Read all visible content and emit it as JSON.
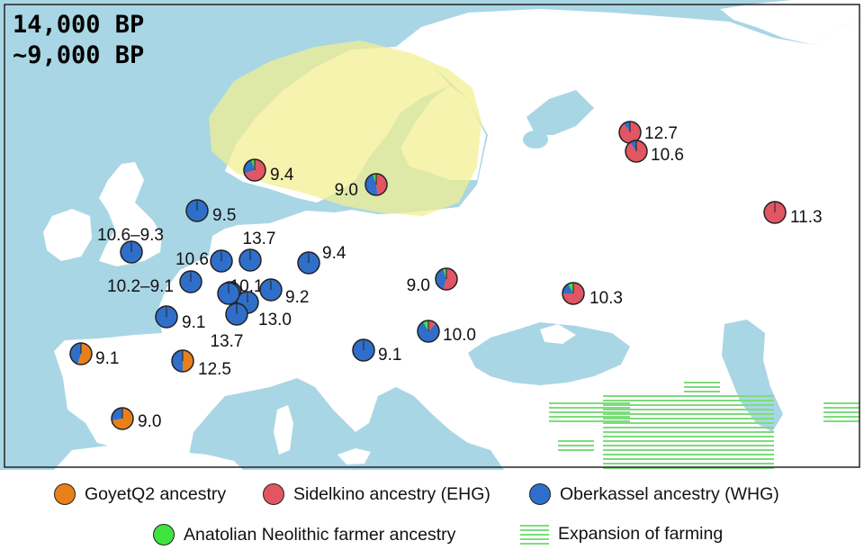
{
  "periods": [
    "14,000 BP",
    "~9,000 BP"
  ],
  "colors": {
    "sea": "#a9d6e5",
    "land": "#ffffff",
    "ice_zone": "#f3ef8f",
    "goyet": "#e8801a",
    "sidelkino": "#e25563",
    "oberkassel": "#2f6fc9",
    "anatolian": "#3fe33f",
    "farming": "#7ddc7d"
  },
  "legend": [
    {
      "key": "goyet",
      "label": "GoyetQ2 ancestry",
      "icon": "orange-circle-icon"
    },
    {
      "key": "sidelkino",
      "label": "Sidelkino ancestry (EHG)",
      "icon": "red-circle-icon"
    },
    {
      "key": "oberkassel",
      "label": "Oberkassel ancestry (WHG)",
      "icon": "blue-circle-icon"
    },
    {
      "key": "anatolian",
      "label": "Anatolian Neolithic farmer ancestry",
      "icon": "green-circle-icon"
    },
    {
      "key": "farming",
      "label": "Expansion of farming",
      "icon": "green-stripes-icon"
    }
  ],
  "samples": [
    {
      "label": "9.4",
      "shares": {
        "goyet": 0.0,
        "sidelkino": 0.7,
        "oberkassel": 0.25,
        "anatolian": 0.05
      }
    },
    {
      "label": "9.0",
      "shares": {
        "goyet": 0.0,
        "sidelkino": 0.48,
        "oberkassel": 0.47,
        "anatolian": 0.05
      }
    },
    {
      "label": "9.5",
      "shares": {
        "goyet": 0.0,
        "sidelkino": 0.01,
        "oberkassel": 0.99,
        "anatolian": 0.0
      }
    },
    {
      "label": "12.7",
      "shares": {
        "goyet": 0.0,
        "sidelkino": 0.9,
        "oberkassel": 0.1,
        "anatolian": 0.0
      }
    },
    {
      "label": "10.6",
      "shares": {
        "goyet": 0.0,
        "sidelkino": 0.9,
        "oberkassel": 0.1,
        "anatolian": 0.0
      }
    },
    {
      "label": "11.3",
      "shares": {
        "goyet": 0.0,
        "sidelkino": 0.99,
        "oberkassel": 0.01,
        "anatolian": 0.0
      }
    },
    {
      "label": "10.6–9.3",
      "shares": {
        "goyet": 0.0,
        "sidelkino": 0.01,
        "oberkassel": 0.99,
        "anatolian": 0.0
      }
    },
    {
      "label": "10.6",
      "shares": {
        "goyet": 0.0,
        "sidelkino": 0.01,
        "oberkassel": 0.99,
        "anatolian": 0.0
      }
    },
    {
      "label": "13.7",
      "shares": {
        "goyet": 0.0,
        "sidelkino": 0.01,
        "oberkassel": 0.99,
        "anatolian": 0.0
      }
    },
    {
      "label": "9.4",
      "shares": {
        "goyet": 0.0,
        "sidelkino": 0.01,
        "oberkassel": 0.99,
        "anatolian": 0.0
      }
    },
    {
      "label": "10.2–9.1",
      "shares": {
        "goyet": 0.0,
        "sidelkino": 0.01,
        "oberkassel": 0.99,
        "anatolian": 0.0
      }
    },
    {
      "label": "10.1",
      "shares": {
        "goyet": 0.0,
        "sidelkino": 0.01,
        "oberkassel": 0.99,
        "anatolian": 0.0
      }
    },
    {
      "label": "9.2",
      "shares": {
        "goyet": 0.0,
        "sidelkino": 0.01,
        "oberkassel": 0.99,
        "anatolian": 0.0
      }
    },
    {
      "label": "13.0",
      "shares": {
        "goyet": 0.0,
        "sidelkino": 0.01,
        "oberkassel": 0.99,
        "anatolian": 0.0
      }
    },
    {
      "label": "",
      "shares": {
        "goyet": 0.0,
        "sidelkino": 0.01,
        "oberkassel": 0.99,
        "anatolian": 0.0
      }
    },
    {
      "label": "13.7",
      "shares": {
        "goyet": 0.0,
        "sidelkino": 0.01,
        "oberkassel": 0.99,
        "anatolian": 0.0
      }
    },
    {
      "label": "9.1",
      "shares": {
        "goyet": 0.0,
        "sidelkino": 0.01,
        "oberkassel": 0.99,
        "anatolian": 0.0
      }
    },
    {
      "label": "9.0",
      "shares": {
        "goyet": 0.0,
        "sidelkino": 0.55,
        "oberkassel": 0.4,
        "anatolian": 0.05
      }
    },
    {
      "label": "10.3",
      "shares": {
        "goyet": 0.0,
        "sidelkino": 0.75,
        "oberkassel": 0.17,
        "anatolian": 0.08
      }
    },
    {
      "label": "10.0",
      "shares": {
        "goyet": 0.0,
        "sidelkino": 0.12,
        "oberkassel": 0.8,
        "anatolian": 0.08
      }
    },
    {
      "label": "9.1",
      "shares": {
        "goyet": 0.0,
        "sidelkino": 0.01,
        "oberkassel": 0.99,
        "anatolian": 0.0
      }
    },
    {
      "label": "9.1",
      "shares": {
        "goyet": 0.55,
        "sidelkino": 0.0,
        "oberkassel": 0.45,
        "anatolian": 0.0
      }
    },
    {
      "label": "12.5",
      "shares": {
        "goyet": 0.5,
        "sidelkino": 0.0,
        "oberkassel": 0.5,
        "anatolian": 0.0
      }
    },
    {
      "label": "9.0",
      "shares": {
        "goyet": 0.72,
        "sidelkino": 0.0,
        "oberkassel": 0.28,
        "anatolian": 0.0
      }
    }
  ]
}
